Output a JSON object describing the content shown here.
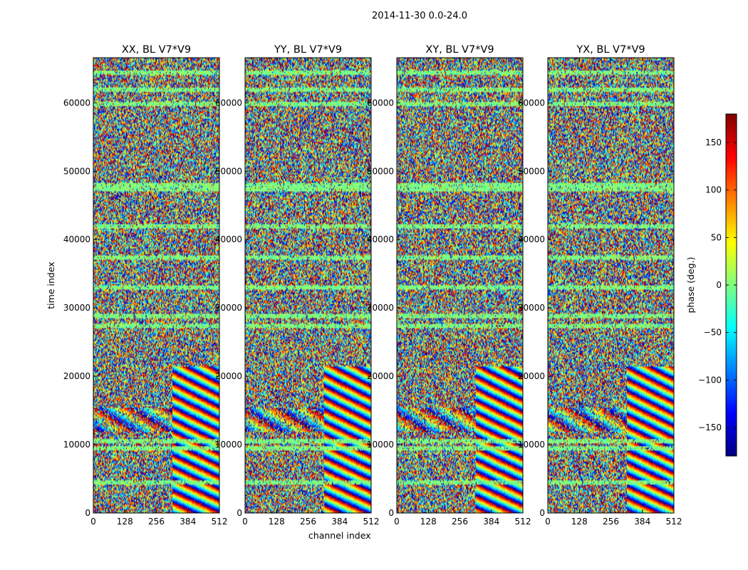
{
  "figure": {
    "suptitle": "2014-11-30 0.0-24.0"
  },
  "chart_data": {
    "type": "heatmap",
    "xlabel": "channel index",
    "ylabel": "time index",
    "xlim": [
      0,
      512
    ],
    "ylim": [
      0,
      66600
    ],
    "xticks": [
      0,
      128,
      256,
      384,
      512
    ],
    "yticks": [
      0,
      10000,
      20000,
      30000,
      40000,
      50000,
      60000
    ],
    "panels": [
      {
        "title": "XX, BL V7*V9"
      },
      {
        "title": "YY, BL V7*V9"
      },
      {
        "title": "XY, BL V7*V9"
      },
      {
        "title": "YX, BL V7*V9"
      }
    ],
    "colorbar": {
      "label": "phase (deg.)",
      "colormap": "jet",
      "range": [
        -180,
        180
      ],
      "ticks": [
        -150,
        -100,
        -50,
        0,
        50,
        100,
        150
      ],
      "tick_labels": [
        "−150",
        "−100",
        "−50",
        "0",
        "50",
        "100",
        "150"
      ]
    },
    "features": {
      "flagged_rows_near_zero_phase": [
        4500,
        9500,
        10600,
        27500,
        29000,
        33000,
        37500,
        42000,
        47500,
        48000,
        60000,
        62000,
        64500
      ],
      "coherent_fringe_region_time": [
        0,
        21500
      ],
      "fringe_channel_start": 320
    }
  }
}
